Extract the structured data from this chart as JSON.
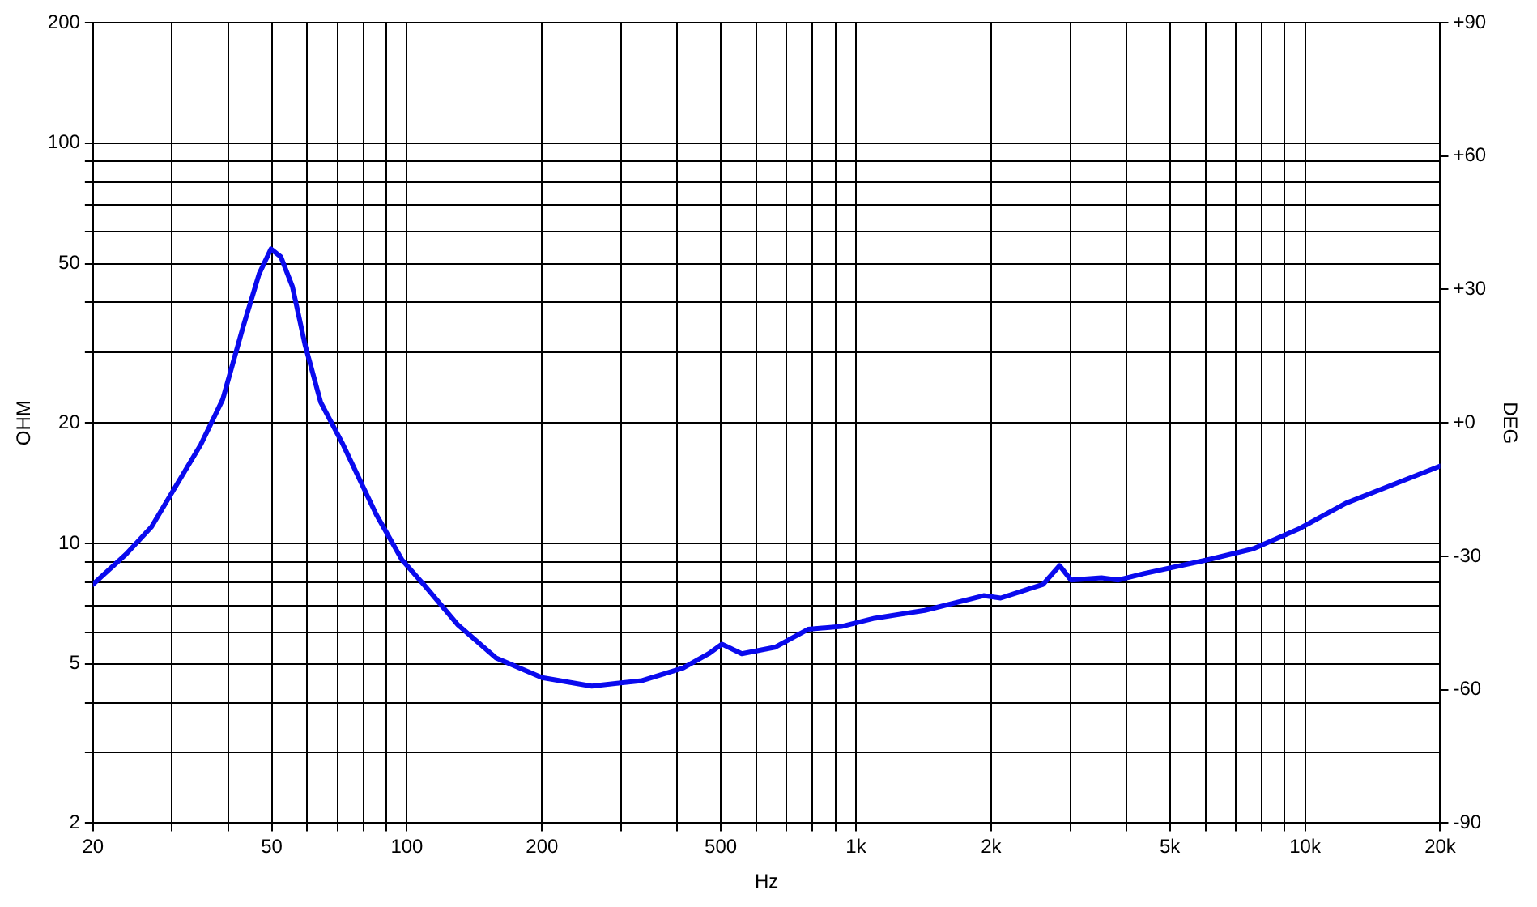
{
  "chart_data": {
    "type": "line",
    "xlabel": "Hz",
    "ylabel": "OHM",
    "y2label": "DEG",
    "log": "xy",
    "grid": true,
    "legend": false,
    "marker": "none",
    "line_style": "solid",
    "x": [
      20,
      23.7,
      27,
      30.7,
      34.8,
      38.9,
      43.1,
      46.9,
      49.8,
      52.4,
      55.6,
      59.3,
      64.3,
      72,
      85.5,
      97.5,
      110,
      130,
      158,
      200,
      258,
      334,
      412,
      470,
      503,
      557,
      660,
      782,
      928,
      1100,
      1423,
      1924,
      2100,
      2610,
      2840,
      3010,
      3520,
      3840,
      4370,
      6070,
      7680,
      9740,
      12330,
      15640,
      20000
    ],
    "series": [
      {
        "color": "#0a0aee",
        "values": [
          7.9,
          9.4,
          11,
          14,
          17.7,
          22.9,
          34.5,
          47.2,
          54.4,
          52,
          43.8,
          31.4,
          22.5,
          17.7,
          11.8,
          9.1,
          7.8,
          6.25,
          5.17,
          4.62,
          4.4,
          4.54,
          4.88,
          5.3,
          5.6,
          5.3,
          5.5,
          6.1,
          6.2,
          6.5,
          6.8,
          7.4,
          7.3,
          7.9,
          8.8,
          8.1,
          8.2,
          8.1,
          8.4,
          9.1,
          9.7,
          10.9,
          12.6,
          14,
          15.6
        ]
      }
    ],
    "xlim": [
      20,
      20000
    ],
    "xticks": [
      20,
      {
        "value": 30,
        "label": null
      },
      {
        "value": 40,
        "label": null
      },
      50,
      {
        "value": 60,
        "label": null
      },
      {
        "value": 70,
        "label": null
      },
      {
        "value": 80,
        "label": null
      },
      {
        "value": 90,
        "label": null
      },
      100,
      200,
      {
        "value": 300,
        "label": null
      },
      {
        "value": 400,
        "label": null
      },
      500,
      {
        "value": 600,
        "label": null
      },
      {
        "value": 700,
        "label": null
      },
      {
        "value": 800,
        "label": null
      },
      {
        "value": 900,
        "label": null
      },
      {
        "value": 1000,
        "label": "1k"
      },
      {
        "value": 2000,
        "label": "2k"
      },
      {
        "value": 3000,
        "label": null
      },
      {
        "value": 4000,
        "label": null
      },
      {
        "value": 5000,
        "label": "5k"
      },
      {
        "value": 6000,
        "label": null
      },
      {
        "value": 7000,
        "label": null
      },
      {
        "value": 8000,
        "label": null
      },
      {
        "value": 9000,
        "label": null
      },
      {
        "value": 10000,
        "label": "10k"
      },
      {
        "value": 20000,
        "label": "20k"
      }
    ],
    "ylim": [
      2,
      200
    ],
    "yticks": [
      2,
      {
        "value": 3,
        "label": null
      },
      {
        "value": 4,
        "label": null
      },
      5,
      {
        "value": 6,
        "label": null
      },
      {
        "value": 7,
        "label": null
      },
      {
        "value": 8,
        "label": null
      },
      {
        "value": 9,
        "label": null
      },
      10,
      20,
      {
        "value": 30,
        "label": null
      },
      {
        "value": 40,
        "label": null
      },
      50,
      {
        "value": 60,
        "label": null
      },
      {
        "value": 70,
        "label": null
      },
      {
        "value": 80,
        "label": null
      },
      {
        "value": 90,
        "label": null
      },
      100,
      200
    ],
    "y2lim": [
      -90,
      90
    ],
    "y2ticks": [
      -90,
      -60,
      -30,
      {
        "value": 0,
        "label": "+0"
      },
      {
        "value": 30,
        "label": "+30"
      },
      {
        "value": 60,
        "label": "+60"
      },
      {
        "value": 90,
        "label": "+90"
      }
    ]
  }
}
